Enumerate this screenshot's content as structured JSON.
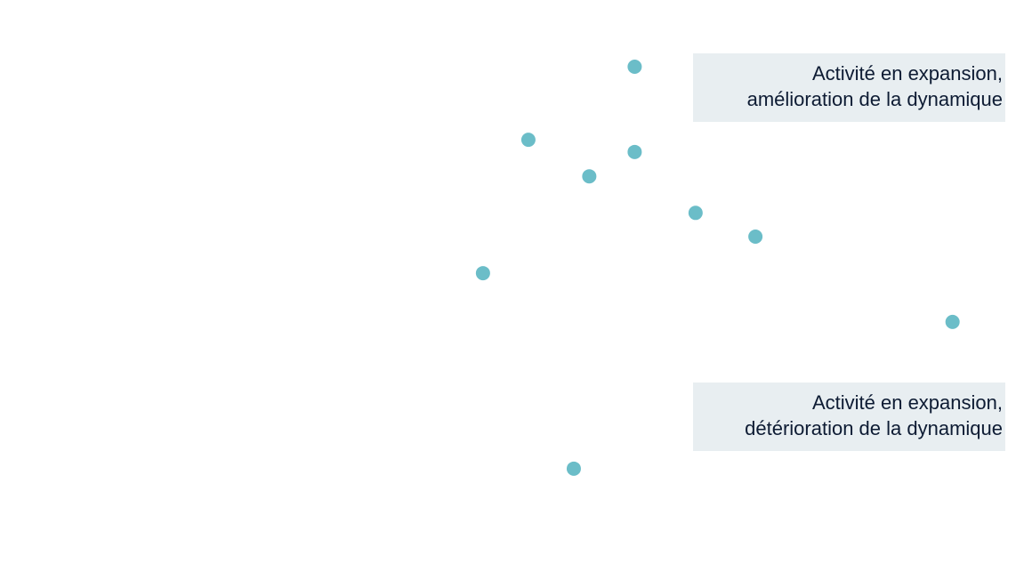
{
  "chart_data": {
    "type": "scatter",
    "title": "",
    "xlabel": "",
    "ylabel": "",
    "xlim": [
      0,
      100
    ],
    "ylim": [
      0,
      100
    ],
    "grid": false,
    "point_color": "#6bbdc8",
    "points": [
      {
        "x": 61.5,
        "y": 88.5
      },
      {
        "x": 51.2,
        "y": 75.9
      },
      {
        "x": 61.5,
        "y": 73.8
      },
      {
        "x": 57.1,
        "y": 69.6
      },
      {
        "x": 67.4,
        "y": 63.3
      },
      {
        "x": 73.2,
        "y": 59.2
      },
      {
        "x": 46.8,
        "y": 52.9
      },
      {
        "x": 92.3,
        "y": 44.5
      },
      {
        "x": 55.6,
        "y": 19.2
      }
    ],
    "annotations": [
      {
        "line1": "Activité en expansion,",
        "line2": "amélioration de la dynamique"
      },
      {
        "line1": "Activité en expansion,",
        "line2": "détérioration de la dynamique"
      }
    ]
  }
}
